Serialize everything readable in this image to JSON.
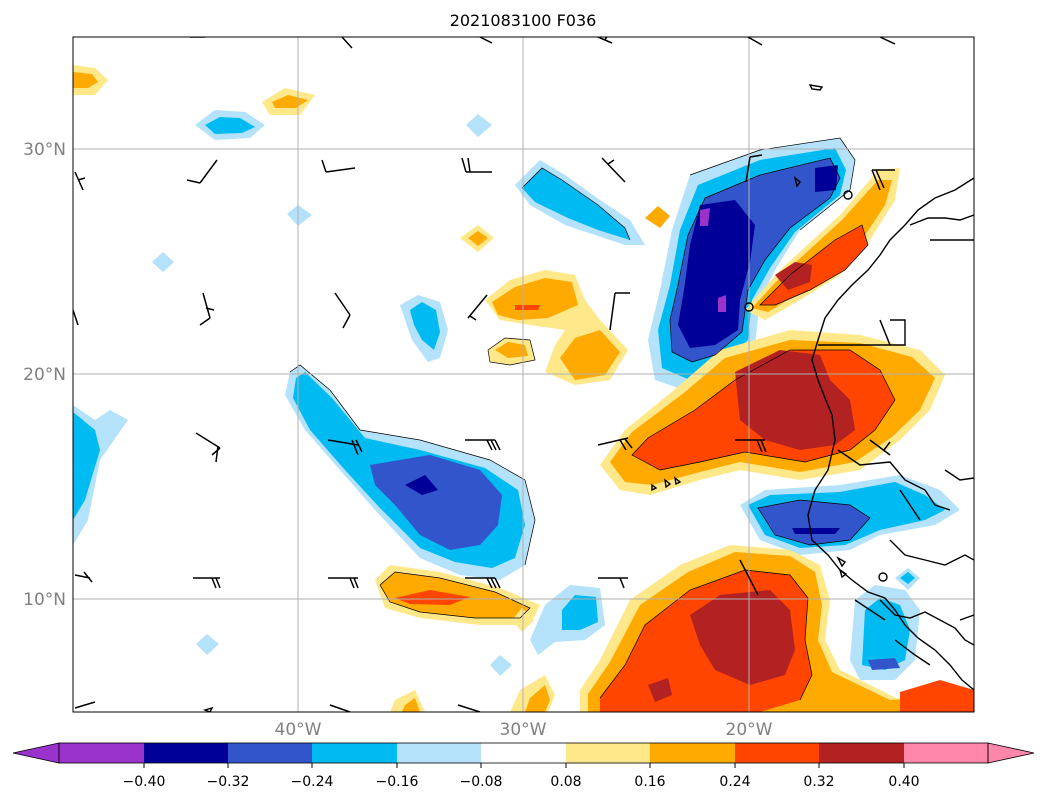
{
  "title": "2021083100 F036",
  "map": {
    "lat_labels": [
      "30°N",
      "20°N",
      "10°N"
    ],
    "lon_labels": [
      "40°W",
      "30°W",
      "20°W"
    ],
    "lat_values": [
      30,
      20,
      10
    ],
    "lon_values": [
      -40,
      -30,
      -20
    ],
    "extent": {
      "lon_min": -50,
      "lon_max": -10,
      "lat_min": 5,
      "lat_max": 35
    },
    "gridlines": true,
    "coastlines": true,
    "wind_barbs": true
  },
  "colorbar": {
    "orientation": "horizontal",
    "extend": "both",
    "labels": [
      "−0.40",
      "−0.32",
      "−0.24",
      "−0.16",
      "−0.08",
      "0.08",
      "0.16",
      "0.24",
      "0.32",
      "0.40"
    ],
    "levels": [
      -0.4,
      -0.32,
      -0.24,
      -0.16,
      -0.08,
      0.08,
      0.16,
      0.24,
      0.32,
      0.4
    ],
    "colors": [
      "#9933cc",
      "#000099",
      "#3355cc",
      "#00bbf2",
      "#b3e2fa",
      "#ffffff",
      "#ffe88a",
      "#ffaa00",
      "#ff4500",
      "#b22222",
      "#ff88aa"
    ]
  },
  "colors": {
    "grid": "#b0b0b0",
    "coast": "#000000",
    "frame": "#000000"
  }
}
